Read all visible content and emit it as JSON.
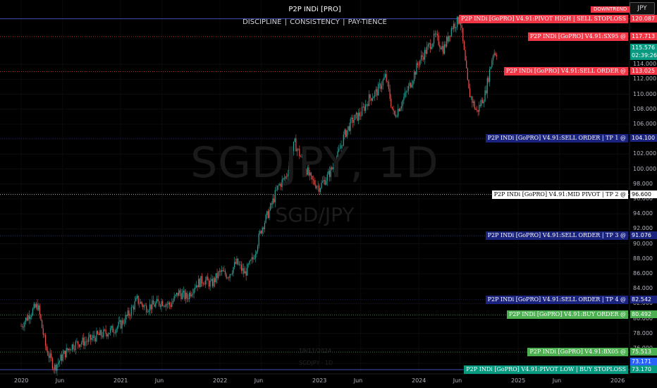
{
  "indicator": {
    "title": "P2P INDi [PRO]",
    "subtitle": "DISCIPLINE  |  CONSISTENCY  |  PAY-TIENCE"
  },
  "watermark": {
    "ticker": "SGDJPY, 1D",
    "name": "SGD/JPY"
  },
  "header": {
    "currency_button": "JPY",
    "trend_tag": "DOWNTREND"
  },
  "markers": {
    "date": "19/11/2024",
    "symbol": "SGDJPY · 1D"
  },
  "current_price": {
    "value": "115.576",
    "countdown": "02:39:26"
  },
  "levels": [
    {
      "label": "P2P INDi [GoPRO] V4.91:PIVOT HIGH | SELL STOPLOSS",
      "value_text": "120.087",
      "value": 120.087,
      "bg": "#f23645",
      "fg": "#ffffff",
      "line": "#3f51b5",
      "style": "solid"
    },
    {
      "label": "P2P INDi [GoPRO] V4.91:SX95 @",
      "value_text": "117.713",
      "value": 117.713,
      "bg": "#f23645",
      "fg": "#ffffff",
      "line": "#f23645",
      "style": "dotted"
    },
    {
      "label": "P2P INDi [GoPRO] V4.91:SELL ORDER @",
      "value_text": "113.025",
      "value": 113.025,
      "bg": "#f23645",
      "fg": "#ffffff",
      "line": "#f23645",
      "style": "dotted"
    },
    {
      "label": "P2P INDi [GoPRO] V4.91:SELL ORDER | TP 1 @",
      "value_text": "104.100",
      "value": 104.1,
      "bg": "#1a237e",
      "fg": "#ffffff",
      "line": "#1a237e",
      "style": "dotted"
    },
    {
      "label": "P2P INDi [GoPRO] V4.91:MID PIVOT | TP 2 @",
      "value_text": "96.600",
      "value": 96.6,
      "bg": "#ffffff",
      "fg": "#000000",
      "line": "#ffffff",
      "style": "dotted"
    },
    {
      "label": "P2P INDi [GoPRO] V4.91:SELL ORDER | TP 3 @",
      "value_text": "91.076",
      "value": 91.076,
      "bg": "#1a237e",
      "fg": "#ffffff",
      "line": "#3949ab",
      "style": "dotted"
    },
    {
      "label": "P2P INDi [GoPRO] V4.91:SELL ORDER | TP 4 @",
      "value_text": "82.542",
      "value": 82.542,
      "bg": "#1a237e",
      "fg": "#ffffff",
      "line": "#1a237e",
      "style": "dotted"
    },
    {
      "label": "P2P INDi [GoPRO] V4.91:BUY ORDER @",
      "value_text": "80.492",
      "value": 80.492,
      "bg": "#4caf50",
      "fg": "#ffffff",
      "line": "#4caf50",
      "style": "dotted"
    },
    {
      "label": "P2P INDi [GoPRO] V4.91:BX05 @",
      "value_text": "75.513",
      "value": 75.513,
      "bg": "#4caf50",
      "fg": "#ffffff",
      "line": "#4caf50",
      "style": "dotted"
    },
    {
      "label": "P2P INDi [GoPRO] V4.91:PIVOT LOW | BUY STOPLOSS",
      "value_text": "73.170",
      "value": 73.17,
      "bg": "#089981",
      "fg": "#ffffff",
      "line": "#3f51b5",
      "style": "solid"
    }
  ],
  "extra_price_tag": {
    "value_text": "73.171",
    "bg": "#2962ff"
  },
  "chart_data": {
    "type": "candlestick",
    "symbol": "SGD/JPY",
    "timeframe": "1D",
    "ylim": [
      72.6,
      122.6
    ],
    "y_ticks": [
      "74.000",
      "76.000",
      "78.000",
      "80.000",
      "82.000",
      "84.000",
      "86.000",
      "88.000",
      "90.000",
      "92.000",
      "94.000",
      "96.000",
      "98.000",
      "100.000",
      "102.000",
      "104.000",
      "106.000",
      "108.000",
      "110.000",
      "112.000",
      "114.000"
    ],
    "x_ticks": [
      "2020",
      "Jun",
      "2021",
      "Jun",
      "2022",
      "Jun",
      "2023",
      "Jun",
      "2024",
      "Jun",
      "2025",
      "Jun",
      "2026"
    ],
    "x_tick_months": [
      0,
      5,
      12,
      17,
      24,
      29,
      36,
      41,
      48,
      53,
      60,
      65,
      72
    ],
    "price_path": [
      [
        0,
        79.0
      ],
      [
        1,
        80.6
      ],
      [
        2,
        81.8
      ],
      [
        3,
        76.0
      ],
      [
        4,
        73.4
      ],
      [
        5,
        75.0
      ],
      [
        6,
        76.3
      ],
      [
        7,
        76.8
      ],
      [
        8,
        77.0
      ],
      [
        9,
        77.6
      ],
      [
        10,
        78.0
      ],
      [
        11,
        78.5
      ],
      [
        12,
        79.2
      ],
      [
        13,
        80.6
      ],
      [
        14,
        82.5
      ],
      [
        15,
        81.5
      ],
      [
        16,
        81.8
      ],
      [
        17,
        82.3
      ],
      [
        18,
        81.8
      ],
      [
        19,
        83.5
      ],
      [
        20,
        82.8
      ],
      [
        21,
        84.5
      ],
      [
        22,
        85.2
      ],
      [
        23,
        84.6
      ],
      [
        24,
        86.2
      ],
      [
        25,
        85.8
      ],
      [
        26,
        87.5
      ],
      [
        27,
        86.0
      ],
      [
        28,
        88.0
      ],
      [
        29,
        92.0
      ],
      [
        30,
        94.5
      ],
      [
        31,
        97.6
      ],
      [
        32,
        99.0
      ],
      [
        33,
        103.5
      ],
      [
        34,
        101.0
      ],
      [
        35,
        98.5
      ],
      [
        36,
        97.6
      ],
      [
        37,
        99.0
      ],
      [
        38,
        101.0
      ],
      [
        39,
        104.5
      ],
      [
        40,
        106.5
      ],
      [
        41,
        107.4
      ],
      [
        42,
        109.4
      ],
      [
        43,
        110.4
      ],
      [
        44,
        112.4
      ],
      [
        45,
        107.0
      ],
      [
        46,
        109.0
      ],
      [
        47,
        111.4
      ],
      [
        48,
        114.3
      ],
      [
        49,
        116.0
      ],
      [
        50,
        117.7
      ],
      [
        51,
        116.0
      ],
      [
        52,
        119.0
      ],
      [
        53,
        120.1
      ],
      [
        54,
        110.5
      ],
      [
        55,
        107.6
      ],
      [
        56,
        110.0
      ],
      [
        57,
        115.6
      ],
      [
        57.5,
        115.6
      ]
    ]
  }
}
